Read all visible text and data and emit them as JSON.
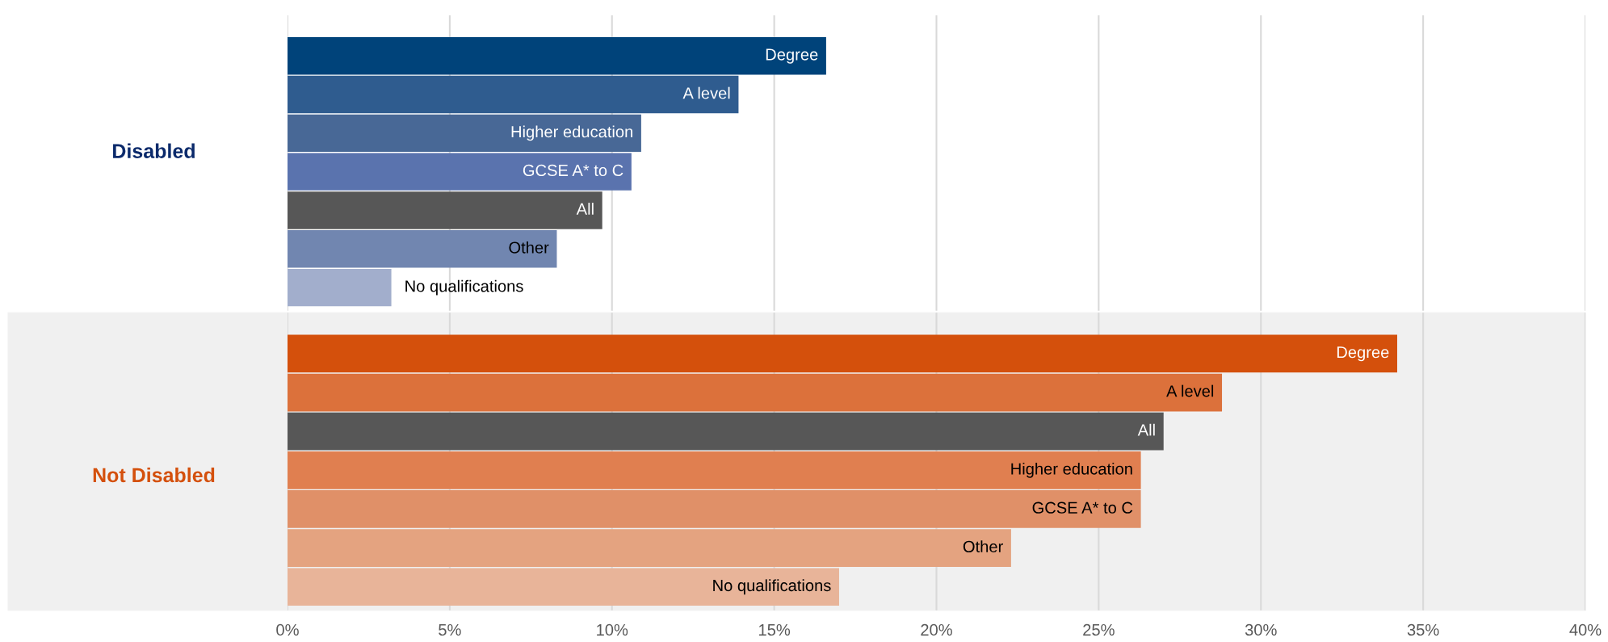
{
  "chart_data": [
    {
      "type": "bar",
      "orientation": "horizontal",
      "title": "Disabled",
      "categories": [
        "Degree",
        "A level",
        "Higher education",
        "GCSE A* to C",
        "All",
        "Other",
        "No qualifications"
      ],
      "values": [
        16.6,
        13.9,
        10.9,
        10.6,
        9.7,
        8.3,
        3.2
      ],
      "colors": [
        "#00437a",
        "#2f5c8f",
        "#486896",
        "#5a73ae",
        "#575757",
        "#7186b0",
        "#a2aecc"
      ],
      "xlim": [
        0,
        40
      ],
      "xticks": [
        {
          "value": 0,
          "label": null
        },
        {
          "value": 5,
          "label": null
        },
        {
          "value": 10,
          "label": null
        },
        {
          "value": 15,
          "label": null
        },
        {
          "value": 20,
          "label": null
        },
        {
          "value": 25,
          "label": null
        },
        {
          "value": 30,
          "label": null
        },
        {
          "value": 35,
          "label": null
        },
        {
          "value": 40,
          "label": null
        }
      ],
      "grid": "x",
      "tick_labels": false
    },
    {
      "type": "bar",
      "orientation": "horizontal",
      "title": "Not Disabled",
      "categories": [
        "Degree",
        "A level",
        "All",
        "Higher education",
        "GCSE A* to C",
        "Other",
        "No qualifications"
      ],
      "values": [
        34.2,
        28.8,
        27.0,
        26.3,
        26.3,
        22.3,
        17.0
      ],
      "colors": [
        "#d4500c",
        "#dc713b",
        "#575757",
        "#e07f50",
        "#e09068",
        "#e4a380",
        "#e8b499"
      ],
      "xlim": [
        0,
        40
      ],
      "xticks": [
        {
          "value": 0,
          "label": "0%"
        },
        {
          "value": 5,
          "label": "5%"
        },
        {
          "value": 10,
          "label": "10%"
        },
        {
          "value": 15,
          "label": "15%"
        },
        {
          "value": 20,
          "label": "20%"
        },
        {
          "value": 25,
          "label": "25%"
        },
        {
          "value": 30,
          "label": "30%"
        },
        {
          "value": 35,
          "label": "35%"
        },
        {
          "value": 40,
          "label": "40%"
        }
      ],
      "grid": "x",
      "tick_labels": "x"
    }
  ]
}
